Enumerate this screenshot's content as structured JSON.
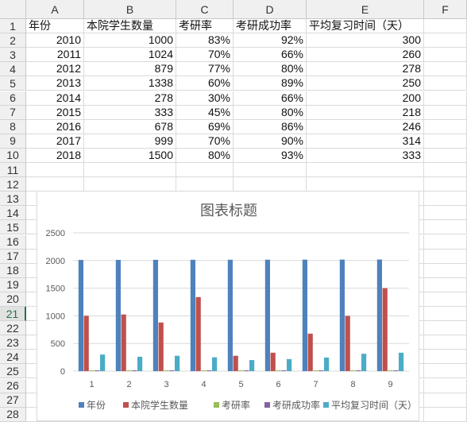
{
  "spreadsheet": {
    "columns": [
      "A",
      "B",
      "C",
      "D",
      "E",
      "F"
    ],
    "rows": [
      "1",
      "2",
      "3",
      "4",
      "5",
      "6",
      "7",
      "8",
      "9",
      "10",
      "11",
      "12",
      "13",
      "14",
      "15",
      "16",
      "17",
      "18",
      "19",
      "20",
      "21",
      "22",
      "23",
      "24",
      "25",
      "26",
      "27",
      "28"
    ],
    "selected_row": "21",
    "header_row": [
      "年份",
      "本院学生数量",
      "考研率",
      "考研成功率",
      "平均复习时间（天）"
    ],
    "data_rows": [
      [
        "2010",
        "1000",
        "83%",
        "92%",
        "300"
      ],
      [
        "2011",
        "1024",
        "70%",
        "66%",
        "260"
      ],
      [
        "2012",
        "879",
        "77%",
        "80%",
        "278"
      ],
      [
        "2013",
        "1338",
        "60%",
        "89%",
        "250"
      ],
      [
        "2014",
        "278",
        "30%",
        "66%",
        "200"
      ],
      [
        "2015",
        "333",
        "45%",
        "80%",
        "218"
      ],
      [
        "2016",
        "678",
        "69%",
        "86%",
        "246"
      ],
      [
        "2017",
        "999",
        "70%",
        "90%",
        "314"
      ],
      [
        "2018",
        "1500",
        "80%",
        "93%",
        "333"
      ]
    ]
  },
  "colors": {
    "series": [
      "#4f81bd",
      "#c0504d",
      "#9bbb59",
      "#8064a2",
      "#4bacc6"
    ],
    "grid": "#d9d9d9",
    "header_bg": "#f0f0f0",
    "selection": "#217346"
  },
  "chart_data": {
    "type": "bar",
    "title": "图表标题",
    "categories": [
      "1",
      "2",
      "3",
      "4",
      "5",
      "6",
      "7",
      "8",
      "9"
    ],
    "y_ticks": [
      "0",
      "500",
      "1000",
      "1500",
      "2000",
      "2500"
    ],
    "ylim": [
      0,
      2500
    ],
    "grid": true,
    "legend_position": "bottom",
    "series": [
      {
        "name": "年份",
        "values": [
          2010,
          2011,
          2012,
          2013,
          2014,
          2015,
          2016,
          2017,
          2018
        ]
      },
      {
        "name": "本院学生数量",
        "values": [
          1000,
          1024,
          879,
          1338,
          278,
          333,
          678,
          999,
          1500
        ]
      },
      {
        "name": "考研率",
        "values": [
          0.83,
          0.7,
          0.77,
          0.6,
          0.3,
          0.45,
          0.69,
          0.7,
          0.8
        ]
      },
      {
        "name": "考研成功率",
        "values": [
          0.92,
          0.66,
          0.8,
          0.89,
          0.66,
          0.8,
          0.86,
          0.9,
          0.93
        ]
      },
      {
        "name": "平均复习时间（天）",
        "values": [
          300,
          260,
          278,
          250,
          200,
          218,
          246,
          314,
          333
        ]
      }
    ]
  }
}
